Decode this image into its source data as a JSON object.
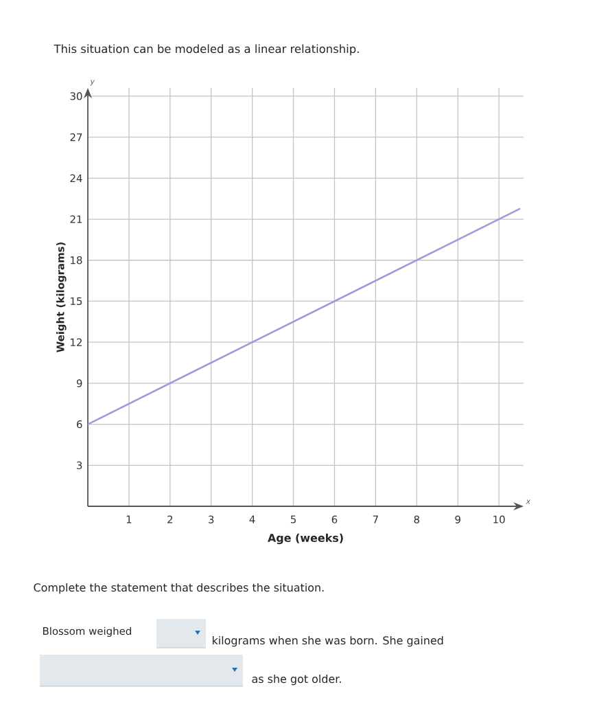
{
  "chart_data": {
    "type": "line",
    "title": "This situation can be modeled as a linear relationship.",
    "xlabel": "Age (weeks)",
    "ylabel": "Weight (kilograms)",
    "x": [
      0,
      10.5
    ],
    "series": [
      {
        "color": "#9c9cdc",
        "values": [
          6,
          21.75
        ]
      }
    ],
    "xlim": [
      0,
      10.6
    ],
    "ylim": [
      0,
      30.6
    ],
    "xticks": [
      1,
      2,
      3,
      4,
      5,
      6,
      7,
      8,
      9,
      10
    ],
    "yticks": [
      3,
      6,
      9,
      12,
      15,
      18,
      21,
      24,
      27,
      30
    ],
    "grid": true,
    "line_style": "solid",
    "annotations": [
      "y",
      "x",
      "Complete the statement that describes the situation.",
      "Blossom weighed",
      "kilograms when she was born. She gained",
      "as she got older."
    ]
  }
}
